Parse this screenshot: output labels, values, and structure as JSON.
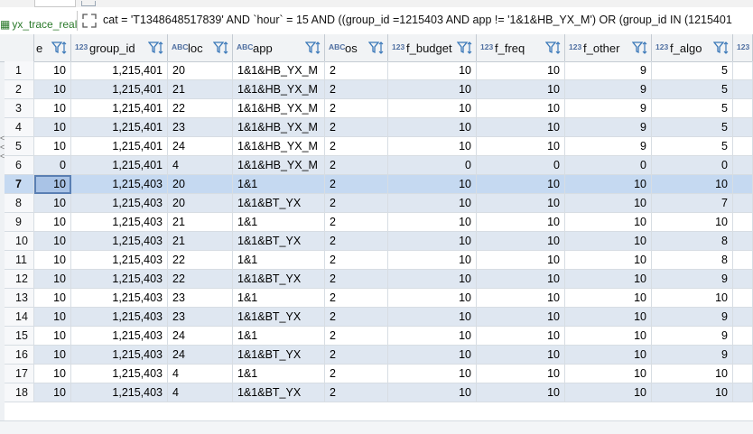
{
  "tab": {
    "label": "yx_trace_real"
  },
  "filter": {
    "text": "cat = 'T1348648517839' AND `hour` = 15 AND ((group_id =1215403 AND app != '1&1&HB_YX_M') OR (group_id IN (1215401"
  },
  "colors": {
    "header_bg": "#f1f3f5",
    "stripe": "#dfe7f1",
    "selected": "#c5d9f1",
    "type_icon": "#4f6fa1"
  },
  "columns": [
    {
      "key": "e",
      "label": "e",
      "type_icon": "",
      "align": "num"
    },
    {
      "key": "group_id",
      "label": "group_id",
      "type_icon": "123",
      "align": "num"
    },
    {
      "key": "loc",
      "label": "loc",
      "type_icon": "ABC",
      "align": "txt"
    },
    {
      "key": "app",
      "label": "app",
      "type_icon": "ABC",
      "align": "txt"
    },
    {
      "key": "os",
      "label": "os",
      "type_icon": "ABC",
      "align": "txt"
    },
    {
      "key": "f_budget",
      "label": "f_budget",
      "type_icon": "123",
      "align": "num"
    },
    {
      "key": "f_freq",
      "label": "f_freq",
      "type_icon": "123",
      "align": "num"
    },
    {
      "key": "f_other",
      "label": "f_other",
      "type_icon": "123",
      "align": "num"
    },
    {
      "key": "f_algo",
      "label": "f_algo",
      "type_icon": "123",
      "align": "num"
    },
    {
      "key": "extra",
      "label": "",
      "type_icon": "123",
      "align": "num"
    }
  ],
  "rows": [
    {
      "n": "1",
      "cells": [
        "10",
        "1,215,401",
        "20",
        "1&1&HB_YX_M",
        "2",
        "10",
        "10",
        "9",
        "5",
        ""
      ]
    },
    {
      "n": "2",
      "cells": [
        "10",
        "1,215,401",
        "21",
        "1&1&HB_YX_M",
        "2",
        "10",
        "10",
        "9",
        "5",
        ""
      ]
    },
    {
      "n": "3",
      "cells": [
        "10",
        "1,215,401",
        "22",
        "1&1&HB_YX_M",
        "2",
        "10",
        "10",
        "9",
        "5",
        ""
      ]
    },
    {
      "n": "4",
      "cells": [
        "10",
        "1,215,401",
        "23",
        "1&1&HB_YX_M",
        "2",
        "10",
        "10",
        "9",
        "5",
        ""
      ]
    },
    {
      "n": "5",
      "cells": [
        "10",
        "1,215,401",
        "24",
        "1&1&HB_YX_M",
        "2",
        "10",
        "10",
        "9",
        "5",
        ""
      ]
    },
    {
      "n": "6",
      "cells": [
        "0",
        "1,215,401",
        "4",
        "1&1&HB_YX_M",
        "2",
        "0",
        "0",
        "0",
        "0",
        ""
      ]
    },
    {
      "n": "7",
      "cells": [
        "10",
        "1,215,403",
        "20",
        "1&1",
        "2",
        "10",
        "10",
        "10",
        "10",
        ""
      ]
    },
    {
      "n": "8",
      "cells": [
        "10",
        "1,215,403",
        "20",
        "1&1&BT_YX",
        "2",
        "10",
        "10",
        "10",
        "7",
        ""
      ]
    },
    {
      "n": "9",
      "cells": [
        "10",
        "1,215,403",
        "21",
        "1&1",
        "2",
        "10",
        "10",
        "10",
        "10",
        ""
      ]
    },
    {
      "n": "10",
      "cells": [
        "10",
        "1,215,403",
        "21",
        "1&1&BT_YX",
        "2",
        "10",
        "10",
        "10",
        "8",
        ""
      ]
    },
    {
      "n": "11",
      "cells": [
        "10",
        "1,215,403",
        "22",
        "1&1",
        "2",
        "10",
        "10",
        "10",
        "8",
        ""
      ]
    },
    {
      "n": "12",
      "cells": [
        "10",
        "1,215,403",
        "22",
        "1&1&BT_YX",
        "2",
        "10",
        "10",
        "10",
        "9",
        ""
      ]
    },
    {
      "n": "13",
      "cells": [
        "10",
        "1,215,403",
        "23",
        "1&1",
        "2",
        "10",
        "10",
        "10",
        "10",
        ""
      ]
    },
    {
      "n": "14",
      "cells": [
        "10",
        "1,215,403",
        "23",
        "1&1&BT_YX",
        "2",
        "10",
        "10",
        "10",
        "9",
        ""
      ]
    },
    {
      "n": "15",
      "cells": [
        "10",
        "1,215,403",
        "24",
        "1&1",
        "2",
        "10",
        "10",
        "10",
        "9",
        ""
      ]
    },
    {
      "n": "16",
      "cells": [
        "10",
        "1,215,403",
        "24",
        "1&1&BT_YX",
        "2",
        "10",
        "10",
        "10",
        "9",
        ""
      ]
    },
    {
      "n": "17",
      "cells": [
        "10",
        "1,215,403",
        "4",
        "1&1",
        "2",
        "10",
        "10",
        "10",
        "10",
        ""
      ]
    },
    {
      "n": "18",
      "cells": [
        "10",
        "1,215,403",
        "4",
        "1&1&BT_YX",
        "2",
        "10",
        "10",
        "10",
        "10",
        ""
      ]
    }
  ],
  "selected_row": 6
}
